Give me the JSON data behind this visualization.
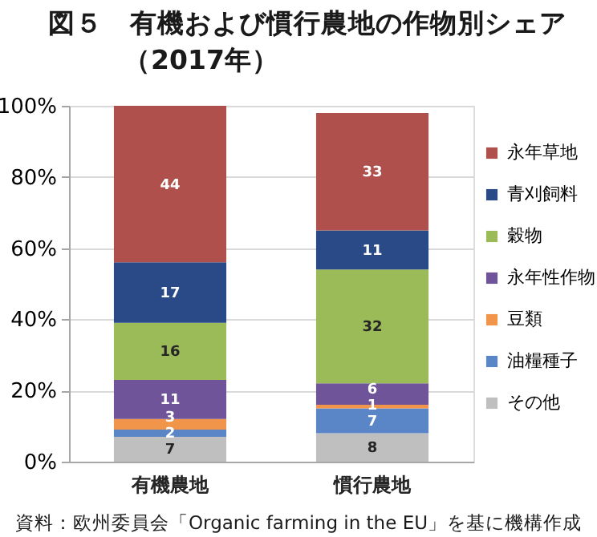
{
  "chart_data": {
    "type": "bar",
    "title": "図５　有機および慣行農地の作物別シェア",
    "subtitle": "（2017年）",
    "categories": [
      "有機農地",
      "慣行農地"
    ],
    "series": [
      {
        "name": "その他",
        "color": "#bfbfbf",
        "values": [
          7,
          8
        ]
      },
      {
        "name": "油糧種子",
        "color": "#5a85c6",
        "values": [
          2,
          7
        ]
      },
      {
        "name": "豆類",
        "color": "#f0954a",
        "values": [
          3,
          1
        ]
      },
      {
        "name": "永年性作物",
        "color": "#6f5499",
        "values": [
          11,
          6
        ]
      },
      {
        "name": "穀物",
        "color": "#9bbb59",
        "values": [
          16,
          32
        ]
      },
      {
        "name": "青刈飼料",
        "color": "#2a4a87",
        "values": [
          17,
          11
        ]
      },
      {
        "name": "永年草地",
        "color": "#b0504d",
        "values": [
          44,
          33
        ]
      }
    ],
    "stacked": true,
    "data_labels": true,
    "ylim": [
      0,
      100
    ],
    "yticks": [
      {
        "value": 0,
        "label": "0%"
      },
      {
        "value": 20,
        "label": "20%"
      },
      {
        "value": 40,
        "label": "40%"
      },
      {
        "value": 60,
        "label": "60%"
      },
      {
        "value": 80,
        "label": "80%"
      },
      {
        "value": 100,
        "label": "100%"
      }
    ],
    "grid": "y",
    "legend": "right",
    "annotations": [
      "資料：欧州委員会「Organic farming in the EU」を基に機構作成"
    ]
  }
}
